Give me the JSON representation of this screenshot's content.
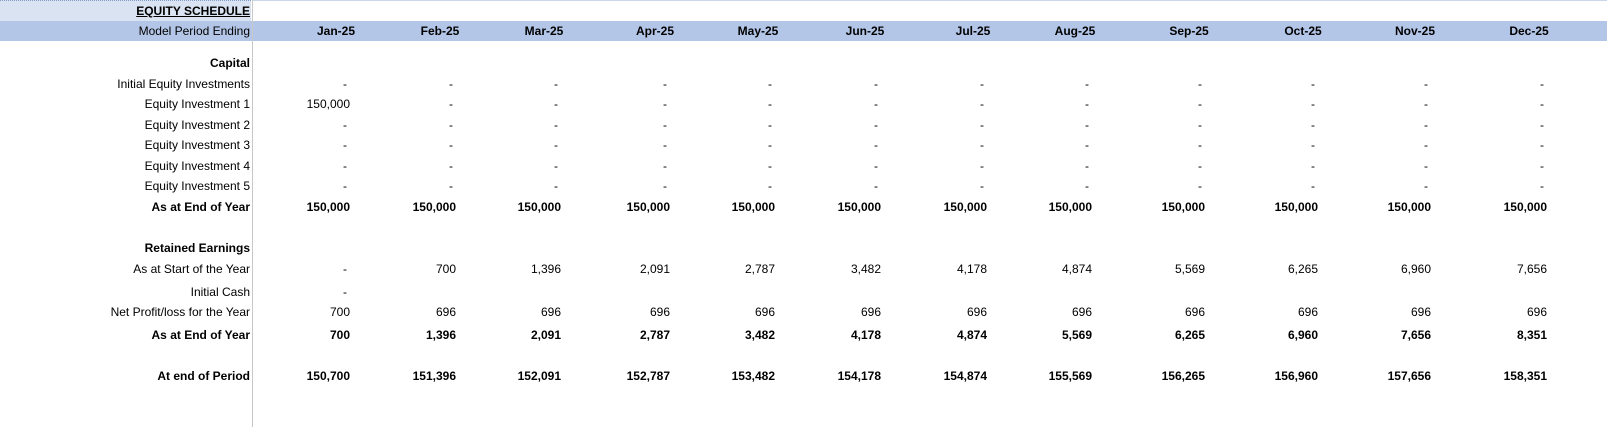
{
  "header": {
    "title": "EQUITY SCHEDULE",
    "period_label": "Model Period Ending",
    "periods": [
      "Jan-25",
      "Feb-25",
      "Mar-25",
      "Apr-25",
      "May-25",
      "Jun-25",
      "Jul-25",
      "Aug-25",
      "Sep-25",
      "Oct-25",
      "Nov-25",
      "Dec-25"
    ]
  },
  "rows": [
    {
      "label": "Capital",
      "style": "bold"
    },
    {
      "label": "Initial Equity Investments",
      "cells": [
        "-",
        "-",
        "-",
        "-",
        "-",
        "-",
        "-",
        "-",
        "-",
        "-",
        "-",
        "-"
      ]
    },
    {
      "label": "Equity Investment 1",
      "cells": [
        "150,000",
        "-",
        "-",
        "-",
        "-",
        "-",
        "-",
        "-",
        "-",
        "-",
        "-",
        "-"
      ]
    },
    {
      "label": "Equity Investment 2",
      "cells": [
        "-",
        "-",
        "-",
        "-",
        "-",
        "-",
        "-",
        "-",
        "-",
        "-",
        "-",
        "-"
      ]
    },
    {
      "label": "Equity Investment 3",
      "cells": [
        "-",
        "-",
        "-",
        "-",
        "-",
        "-",
        "-",
        "-",
        "-",
        "-",
        "-",
        "-"
      ]
    },
    {
      "label": "Equity Investment 4",
      "cells": [
        "-",
        "-",
        "-",
        "-",
        "-",
        "-",
        "-",
        "-",
        "-",
        "-",
        "-",
        "-"
      ]
    },
    {
      "label": "Equity Investment 5",
      "cells": [
        "-",
        "-",
        "-",
        "-",
        "-",
        "-",
        "-",
        "-",
        "-",
        "-",
        "-",
        "-"
      ]
    },
    {
      "label": "As at End of Year",
      "style": "bold",
      "cells": [
        "150,000",
        "150,000",
        "150,000",
        "150,000",
        "150,000",
        "150,000",
        "150,000",
        "150,000",
        "150,000",
        "150,000",
        "150,000",
        "150,000"
      ]
    },
    {
      "label": "Retained Earnings",
      "style": "bold"
    },
    {
      "label": "As at Start of the Year",
      "cells": [
        "-",
        "700",
        "1,396",
        "2,091",
        "2,787",
        "3,482",
        "4,178",
        "4,874",
        "5,569",
        "6,265",
        "6,960",
        "7,656"
      ]
    },
    {
      "label": "Initial Cash",
      "cells": [
        "-"
      ]
    },
    {
      "label": "Net Profit/loss for the Year",
      "cells": [
        "700",
        "696",
        "696",
        "696",
        "696",
        "696",
        "696",
        "696",
        "696",
        "696",
        "696",
        "696"
      ]
    },
    {
      "label": "As at End of Year",
      "style": "bold",
      "cells": [
        "700",
        "1,396",
        "2,091",
        "2,787",
        "3,482",
        "4,178",
        "4,874",
        "5,569",
        "6,265",
        "6,960",
        "7,656",
        "8,351"
      ]
    },
    {
      "label": "At end of Period",
      "style": "bold",
      "cells": [
        "150,700",
        "151,396",
        "152,091",
        "152,787",
        "153,482",
        "154,178",
        "154,874",
        "155,569",
        "156,265",
        "156,960",
        "157,656",
        "158,351"
      ]
    }
  ]
}
